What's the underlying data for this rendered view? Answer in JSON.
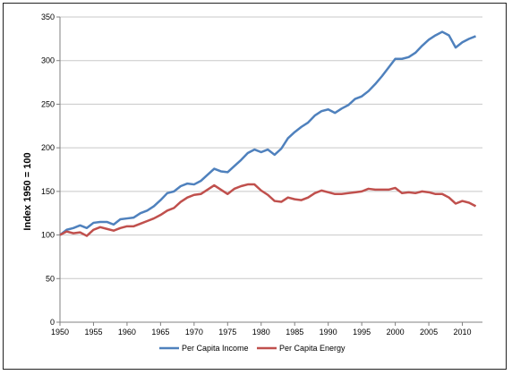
{
  "chart_data": {
    "type": "line",
    "title": "",
    "xlabel": "",
    "ylabel": "Index 1950 = 100",
    "xlim": [
      1950,
      2013
    ],
    "ylim": [
      0,
      350
    ],
    "grid": "horizontal",
    "legend_position": "bottom",
    "x_ticks": [
      1950,
      1955,
      1960,
      1965,
      1970,
      1975,
      1980,
      1985,
      1990,
      1995,
      2000,
      2005,
      2010
    ],
    "y_ticks": [
      0,
      50,
      100,
      150,
      200,
      250,
      300,
      350
    ],
    "x": [
      1950,
      1951,
      1952,
      1953,
      1954,
      1955,
      1956,
      1957,
      1958,
      1959,
      1960,
      1961,
      1962,
      1963,
      1964,
      1965,
      1966,
      1967,
      1968,
      1969,
      1970,
      1971,
      1972,
      1973,
      1974,
      1975,
      1976,
      1977,
      1978,
      1979,
      1980,
      1981,
      1982,
      1983,
      1984,
      1985,
      1986,
      1987,
      1988,
      1989,
      1990,
      1991,
      1992,
      1993,
      1994,
      1995,
      1996,
      1997,
      1998,
      1999,
      2000,
      2001,
      2002,
      2003,
      2004,
      2005,
      2006,
      2007,
      2008,
      2009,
      2010,
      2011,
      2012
    ],
    "series": [
      {
        "name": "Per Capita Income",
        "color": "#4F81BD",
        "values": [
          100,
          106,
          108,
          111,
          108,
          114,
          115,
          115,
          112,
          118,
          119,
          120,
          125,
          128,
          133,
          140,
          148,
          150,
          156,
          159,
          158,
          162,
          169,
          176,
          173,
          172,
          179,
          186,
          194,
          198,
          195,
          198,
          192,
          199,
          211,
          218,
          224,
          229,
          237,
          242,
          244,
          240,
          245,
          249,
          256,
          259,
          265,
          273,
          282,
          292,
          302,
          302,
          304,
          309,
          317,
          324,
          329,
          333,
          329,
          315,
          321,
          325,
          328
        ]
      },
      {
        "name": "Per Capita Energy",
        "color": "#C0504D",
        "values": [
          100,
          104,
          102,
          103,
          99,
          106,
          109,
          107,
          105,
          108,
          110,
          110,
          113,
          116,
          119,
          123,
          128,
          131,
          138,
          143,
          146,
          147,
          152,
          157,
          152,
          147,
          153,
          156,
          158,
          158,
          151,
          146,
          139,
          138,
          143,
          141,
          140,
          143,
          148,
          151,
          149,
          147,
          147,
          148,
          149,
          150,
          153,
          152,
          152,
          152,
          154,
          148,
          149,
          148,
          150,
          149,
          147,
          147,
          143,
          136,
          139,
          137,
          133
        ]
      }
    ]
  }
}
